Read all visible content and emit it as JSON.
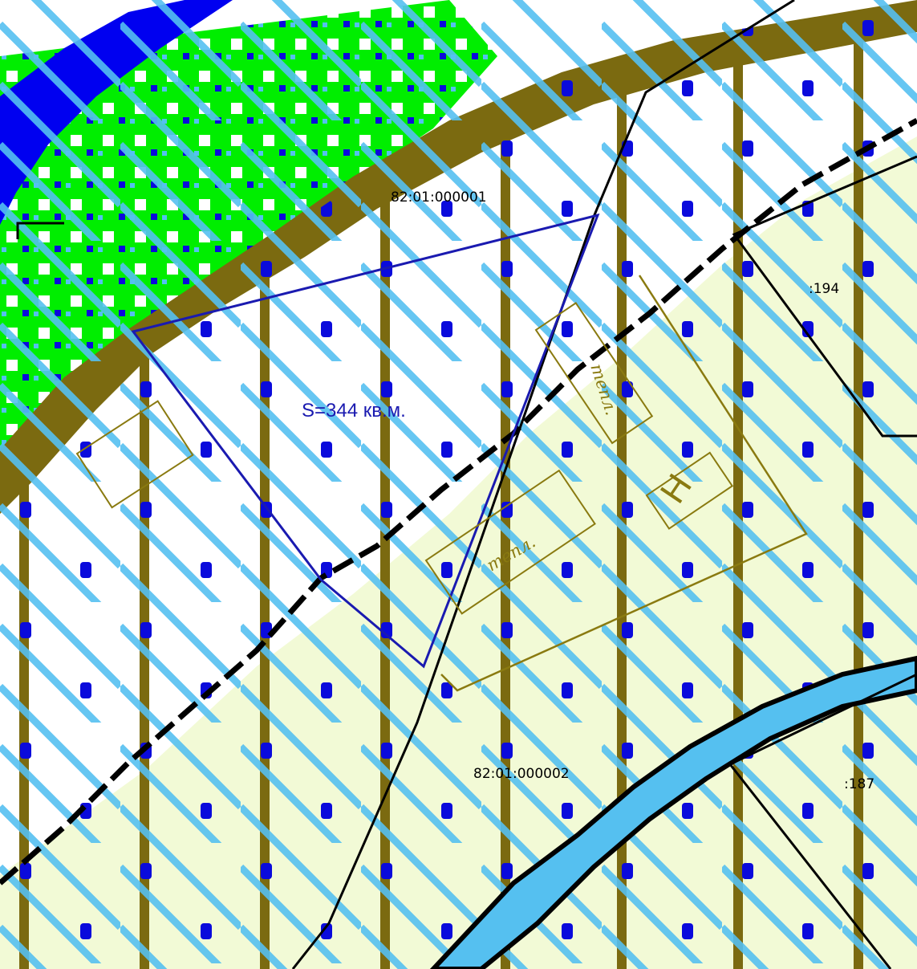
{
  "map": {
    "labels": {
      "block_north": "82:01:000001",
      "block_south": "82:01:000002",
      "parcel_194": ":194",
      "parcel_187": ":187",
      "area": "S=344 кв.м.",
      "greenhouse_1": "тепл.",
      "greenhouse_2": "тепл.",
      "structure_h": "Н"
    },
    "colors": {
      "river": "#0000f0",
      "forest": "#00ee00",
      "bank": "#7b6a10",
      "meadow": "#f2fad6",
      "water_hatch": "#55c0f0",
      "dots": "#0a0adc",
      "parcel_outline": "#1a1ab0",
      "boundary": "#000000",
      "building": "#8a7a10"
    }
  }
}
